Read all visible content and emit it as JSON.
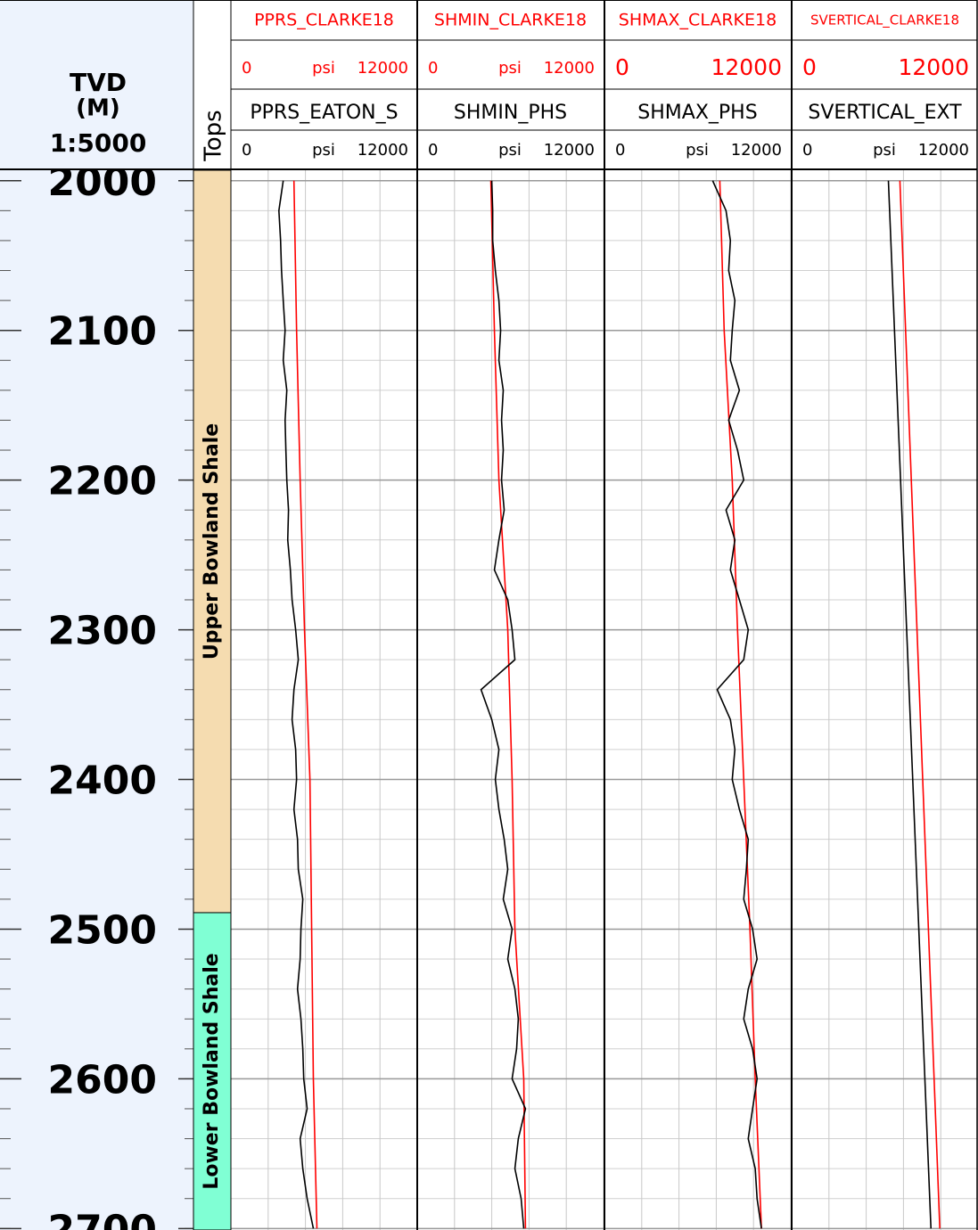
{
  "chart_data": {
    "type": "well-log",
    "depth_label": "TVD",
    "depth_unit": "(M)",
    "scale": "1:5000",
    "tops_label": "Tops",
    "ylim": [
      1993,
      2701
    ],
    "yticks": [
      2000,
      2100,
      2200,
      2300,
      2400,
      2500,
      2600,
      2700
    ],
    "yminor": [
      2000,
      2020,
      2040,
      2060,
      2080,
      2100,
      2120,
      2140,
      2160,
      2180,
      2200,
      2220,
      2240,
      2260,
      2280,
      2300,
      2320,
      2340,
      2360,
      2380,
      2400,
      2420,
      2440,
      2460,
      2480,
      2500,
      2520,
      2540,
      2560,
      2580,
      2600,
      2620,
      2640,
      2660,
      2680,
      2700
    ],
    "xticks": [
      0,
      2400,
      4800,
      7200,
      9600,
      12000
    ],
    "grid": true,
    "tops": [
      {
        "name": "Upper Bowland Shale",
        "color": "#f5dcb0"
      },
      {
        "name": "Lower Bowland Shale",
        "top": 2489,
        "color": "#80ffd4"
      }
    ],
    "tracks": [
      {
        "series": [
          {
            "name": "PPRS_CLARKE18",
            "color": "#ff0000",
            "xlim": [
              0,
              12000
            ],
            "unit": "psi",
            "depths": [
              2000,
              2100,
              2200,
              2300,
              2400,
              2500,
              2600,
              2700
            ],
            "values": [
              4060,
              4230,
              4460,
              4740,
              5090,
              5200,
              5310,
              5540
            ]
          },
          {
            "name": "PPRS_EATON_S",
            "color": "#000000",
            "xlim": [
              0,
              12000
            ],
            "unit": "psi",
            "depths": [
              2000,
              2020,
              2040,
              2060,
              2080,
              2100,
              2120,
              2140,
              2160,
              2180,
              2200,
              2220,
              2240,
              2260,
              2280,
              2300,
              2320,
              2340,
              2360,
              2380,
              2400,
              2420,
              2440,
              2460,
              2480,
              2500,
              2520,
              2540,
              2560,
              2580,
              2600,
              2620,
              2640,
              2660,
              2680,
              2700
            ],
            "values": [
              3370,
              3090,
              3200,
              3260,
              3370,
              3490,
              3370,
              3600,
              3490,
              3540,
              3600,
              3710,
              3660,
              3830,
              3940,
              4170,
              4340,
              4060,
              3940,
              4170,
              4230,
              4060,
              4290,
              4340,
              4630,
              4510,
              4460,
              4290,
              4510,
              4630,
              4690,
              4910,
              4460,
              4630,
              4910,
              5310
            ]
          }
        ]
      },
      {
        "series": [
          {
            "name": "SHMIN_CLARKE18",
            "color": "#ff0000",
            "xlim": [
              0,
              12000
            ],
            "unit": "psi",
            "depths": [
              2000,
              2100,
              2200,
              2300,
              2400,
              2500,
              2600,
              2700
            ],
            "values": [
              4740,
              4970,
              5260,
              5830,
              6110,
              6290,
              6860,
              6970
            ]
          },
          {
            "name": "SHMIN_PHS",
            "color": "#000000",
            "xlim": [
              0,
              12000
            ],
            "unit": "psi",
            "depths": [
              2000,
              2020,
              2040,
              2060,
              2080,
              2100,
              2120,
              2140,
              2160,
              2180,
              2200,
              2220,
              2240,
              2260,
              2280,
              2300,
              2320,
              2340,
              2360,
              2380,
              2400,
              2420,
              2440,
              2460,
              2480,
              2500,
              2520,
              2540,
              2560,
              2580,
              2600,
              2620,
              2640,
              2660,
              2680,
              2700
            ],
            "values": [
              4800,
              4860,
              4860,
              5030,
              5260,
              5370,
              5260,
              5540,
              5430,
              5540,
              5430,
              5600,
              5260,
              4970,
              5830,
              6110,
              6290,
              4110,
              4800,
              5260,
              5030,
              5260,
              5600,
              5830,
              5540,
              6110,
              5830,
              6290,
              6510,
              6400,
              6110,
              6970,
              6510,
              6290,
              6690,
              6860
            ]
          }
        ]
      },
      {
        "series": [
          {
            "name": "SHMAX_CLARKE18",
            "color": "#ff0000",
            "xlim": [
              0,
              12000
            ],
            "depths": [
              2000,
              2100,
              2200,
              2300,
              2400,
              2500,
              2600,
              2700
            ],
            "values": [
              7430,
              7710,
              8230,
              8570,
              8970,
              9370,
              9710,
              10110
            ]
          },
          {
            "name": "SHMAX_PHS",
            "color": "#000000",
            "xlim": [
              0,
              12000
            ],
            "unit": "psi",
            "depths": [
              2000,
              2020,
              2040,
              2060,
              2080,
              2100,
              2120,
              2140,
              2160,
              2180,
              2200,
              2220,
              2240,
              2260,
              2280,
              2300,
              2320,
              2340,
              2360,
              2380,
              2400,
              2420,
              2440,
              2460,
              2480,
              2500,
              2520,
              2540,
              2560,
              2580,
              2600,
              2620,
              2640,
              2660,
              2680,
              2700
            ],
            "values": [
              6970,
              7830,
              8110,
              8000,
              8400,
              8230,
              8110,
              8690,
              8000,
              8570,
              8970,
              7830,
              8400,
              8110,
              8690,
              9260,
              8970,
              7260,
              8110,
              8400,
              8230,
              8690,
              9260,
              9140,
              8970,
              9540,
              9830,
              9260,
              8970,
              9540,
              9830,
              9540,
              9260,
              9710,
              9830,
              10110
            ]
          }
        ]
      },
      {
        "series": [
          {
            "name": "SVERTICAL_CLARKE18",
            "color": "#ff0000",
            "xlim": [
              0,
              12000
            ],
            "depths": [
              2000,
              2700
            ],
            "values": [
              6970,
              9540
            ]
          },
          {
            "name": "SVERTICAL_EXT",
            "color": "#000000",
            "xlim": [
              0,
              12000
            ],
            "unit": "psi",
            "depths": [
              2000,
              2700
            ],
            "values": [
              6230,
              8970
            ]
          }
        ]
      }
    ]
  }
}
